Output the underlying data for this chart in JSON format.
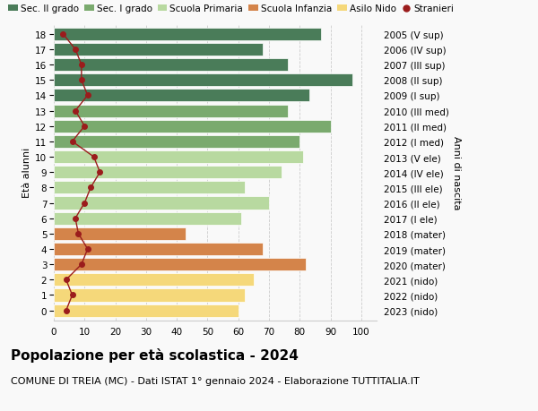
{
  "ages": [
    18,
    17,
    16,
    15,
    14,
    13,
    12,
    11,
    10,
    9,
    8,
    7,
    6,
    5,
    4,
    3,
    2,
    1,
    0
  ],
  "labels_right": [
    "2005 (V sup)",
    "2006 (IV sup)",
    "2007 (III sup)",
    "2008 (II sup)",
    "2009 (I sup)",
    "2010 (III med)",
    "2011 (II med)",
    "2012 (I med)",
    "2013 (V ele)",
    "2014 (IV ele)",
    "2015 (III ele)",
    "2016 (II ele)",
    "2017 (I ele)",
    "2018 (mater)",
    "2019 (mater)",
    "2020 (mater)",
    "2021 (nido)",
    "2022 (nido)",
    "2023 (nido)"
  ],
  "bar_values": [
    87,
    68,
    76,
    97,
    83,
    76,
    90,
    80,
    81,
    74,
    62,
    70,
    61,
    43,
    68,
    82,
    65,
    62,
    60
  ],
  "bar_colors": [
    "#4a7c59",
    "#4a7c59",
    "#4a7c59",
    "#4a7c59",
    "#4a7c59",
    "#7aaa6e",
    "#7aaa6e",
    "#7aaa6e",
    "#b8d9a0",
    "#b8d9a0",
    "#b8d9a0",
    "#b8d9a0",
    "#b8d9a0",
    "#d4844a",
    "#d4844a",
    "#d4844a",
    "#f5d87a",
    "#f5d87a",
    "#f5d87a"
  ],
  "stranieri_values": [
    3,
    7,
    9,
    9,
    11,
    7,
    10,
    6,
    13,
    15,
    12,
    10,
    7,
    8,
    11,
    9,
    4,
    6,
    4
  ],
  "stranieri_color": "#9b1c1c",
  "title": "Popolazione per età scolastica - 2024",
  "subtitle": "COMUNE DI TREIA (MC) - Dati ISTAT 1° gennaio 2024 - Elaborazione TUTTITALIA.IT",
  "ylabel": "Età alunni",
  "ylabel_right": "Anni di nascita",
  "xlim": [
    0,
    105
  ],
  "xticks": [
    0,
    10,
    20,
    30,
    40,
    50,
    60,
    70,
    80,
    90,
    100
  ],
  "legend_labels": [
    "Sec. II grado",
    "Sec. I grado",
    "Scuola Primaria",
    "Scuola Infanzia",
    "Asilo Nido",
    "Stranieri"
  ],
  "legend_colors": [
    "#4a7c59",
    "#7aaa6e",
    "#b8d9a0",
    "#d4844a",
    "#f5d87a",
    "#9b1c1c"
  ],
  "bg_color": "#f9f9f9",
  "bar_height": 0.82,
  "title_fontsize": 11,
  "subtitle_fontsize": 8,
  "tick_fontsize": 7.5,
  "legend_fontsize": 7.5,
  "ylabel_fontsize": 8,
  "ylabel_right_fontsize": 8
}
